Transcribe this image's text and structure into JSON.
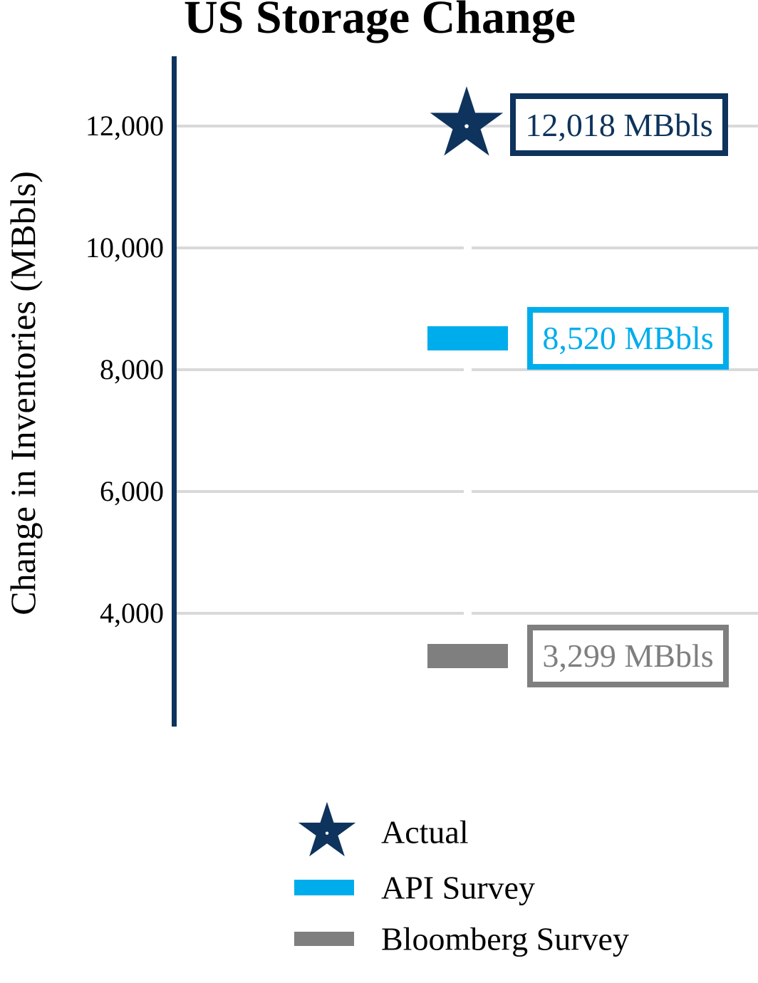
{
  "chart_data": {
    "type": "bar",
    "title": "US Storage Change",
    "xlabel": "",
    "ylabel": "Change in Inventories (MBbls)",
    "unit": "MBbls",
    "ylim": [
      2100,
      13150
    ],
    "grid": "horizontal",
    "legend_position": "bottom",
    "axis_color": "#0E335C",
    "grid_color": "#D9D9D9",
    "yticks": [
      {
        "value": 4000,
        "label": "4,000"
      },
      {
        "value": 6000,
        "label": "6,000"
      },
      {
        "value": 8000,
        "label": "8,000"
      },
      {
        "value": 10000,
        "label": "10,000"
      },
      {
        "value": 12000,
        "label": "12,000"
      }
    ],
    "series": [
      {
        "name": "Actual",
        "style": "star-marker",
        "value": 12018,
        "label": "12,018 MBbls",
        "color": "#0E335C"
      },
      {
        "name": "API Survey",
        "style": "bar",
        "value": 8520,
        "label": "8,520 MBbls",
        "color": "#00ADEC"
      },
      {
        "name": "Bloomberg Survey",
        "style": "bar",
        "value": 3299,
        "label": "3,299 MBbls",
        "color": "#7F7F7F"
      }
    ]
  }
}
